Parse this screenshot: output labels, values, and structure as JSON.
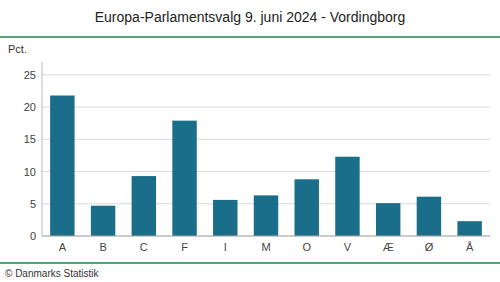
{
  "chart_data": {
    "type": "bar",
    "title": "Europa-Parlamentsvalg 9. juni 2024 - Vordingborg",
    "ylabel": "Pct.",
    "categories": [
      "A",
      "B",
      "C",
      "F",
      "I",
      "M",
      "O",
      "V",
      "Æ",
      "Ø",
      "Å"
    ],
    "values": [
      21.8,
      4.7,
      9.3,
      17.9,
      5.6,
      6.3,
      8.8,
      12.3,
      5.1,
      6.1,
      2.3
    ],
    "color": "#1a6e8a",
    "ylim": [
      0,
      27
    ],
    "yticks": [
      0,
      5,
      10,
      15,
      20,
      25
    ],
    "grid": true,
    "annotations": [
      "© Danmarks Statistik"
    ]
  }
}
